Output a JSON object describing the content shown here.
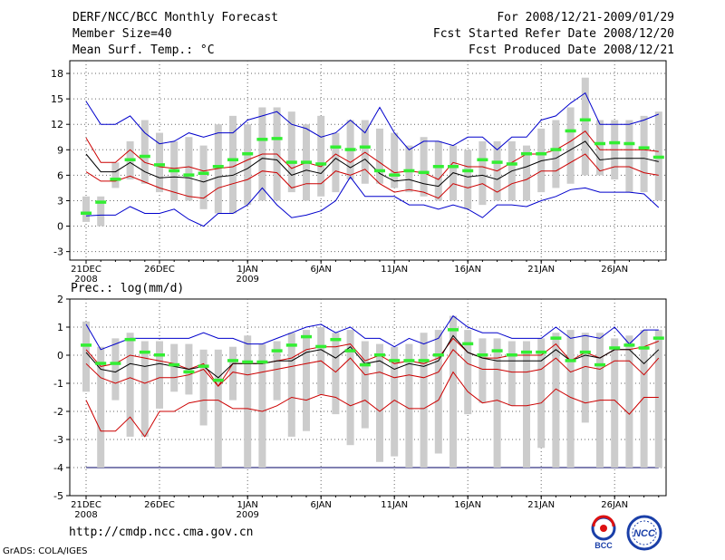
{
  "header": {
    "title": "DERF/NCC/BCC Monthly Forecast",
    "member_size": "Member Size=40",
    "variable": "Mean Surf. Temp.: °C",
    "period": "For 2008/12/21-2009/01/29",
    "started": "Fcst Started Refer Date 2008/12/20",
    "produced": "Fcst Produced Date 2008/12/21"
  },
  "footer": {
    "url": "http://cmdp.ncc.cma.gov.cn",
    "grads": "GrADS: COLA/IGES",
    "logo_bcc": "BCC",
    "logo_ncc": "NCC"
  },
  "colors": {
    "bar": "#cccccc",
    "obs": "#33ee33",
    "mean": "#000000",
    "inner": "#cc0000",
    "outer": "#0000cc",
    "grid": "#666666"
  },
  "x_labels": [
    {
      "day": 1,
      "text": "21DEC",
      "sub": "2008"
    },
    {
      "day": 6,
      "text": "26DEC",
      "sub": ""
    },
    {
      "day": 12,
      "text": "1JAN",
      "sub": "2009"
    },
    {
      "day": 17,
      "text": "6JAN",
      "sub": ""
    },
    {
      "day": 22,
      "text": "11JAN",
      "sub": ""
    },
    {
      "day": 27,
      "text": "16JAN",
      "sub": ""
    },
    {
      "day": 32,
      "text": "21JAN",
      "sub": ""
    },
    {
      "day": 37,
      "text": "26JAN",
      "sub": ""
    }
  ],
  "chart_data": [
    {
      "type": "box-line",
      "title": "Mean Surf. Temp.: °C",
      "x": [
        1,
        2,
        3,
        4,
        5,
        6,
        7,
        8,
        9,
        10,
        11,
        12,
        13,
        14,
        15,
        16,
        17,
        18,
        19,
        20,
        21,
        22,
        23,
        24,
        25,
        26,
        27,
        28,
        29,
        30,
        31,
        32,
        33,
        34,
        35,
        36,
        37,
        38,
        39,
        40
      ],
      "ylim": [
        -4,
        19.5
      ],
      "yticks": [
        -3,
        0,
        3,
        6,
        9,
        12,
        15,
        18
      ],
      "bar_low": [
        0.5,
        0,
        4.5,
        5.5,
        5,
        4,
        3,
        3,
        2,
        1.5,
        1.5,
        2.5,
        3,
        3,
        4,
        3,
        3.5,
        4,
        5.5,
        5,
        5,
        4.5,
        4,
        3.5,
        3,
        3,
        2,
        2.5,
        3,
        3,
        3,
        4,
        4.5,
        5,
        6,
        6,
        5.5,
        4,
        4,
        3
      ],
      "bar_high": [
        3.5,
        3.5,
        7.5,
        10,
        12.5,
        11,
        10,
        10.5,
        9.5,
        12,
        13,
        12,
        14,
        14,
        13.5,
        12,
        13,
        11,
        12.5,
        12.5,
        11.5,
        11,
        9.5,
        10.5,
        10,
        9.5,
        9,
        10,
        10,
        10,
        9.5,
        11.5,
        12.5,
        14,
        17.5,
        12.5,
        12.5,
        12.5,
        13,
        13.5
      ],
      "obs": [
        1.5,
        2.8,
        5.5,
        7.8,
        8.2,
        7.2,
        6.5,
        6.0,
        6.2,
        7.0,
        7.8,
        8.5,
        10.2,
        10.3,
        7.5,
        7.5,
        7.3,
        9.3,
        9.0,
        9.3,
        6.5,
        6.0,
        6.5,
        6.3,
        7.0,
        7.0,
        6.5,
        7.8,
        7.5,
        7.3,
        8.5,
        8.5,
        9.0,
        11.2,
        12.5,
        9.7,
        9.8,
        9.7,
        9.2,
        8.1
      ],
      "series": [
        {
          "name": "max",
          "color": "#0000cc",
          "values": [
            14.7,
            12.0,
            12.0,
            13.0,
            11.0,
            9.7,
            10.0,
            11.0,
            10.5,
            11.0,
            11.0,
            12.5,
            13.0,
            13.5,
            12.0,
            11.5,
            10.5,
            11.0,
            12.5,
            11.0,
            14.0,
            11.0,
            9.0,
            10.0,
            10.0,
            9.5,
            10.5,
            10.5,
            9.0,
            10.5,
            10.5,
            12.5,
            13.0,
            14.5,
            15.7,
            12.0,
            12.0,
            12.0,
            12.5,
            13.2
          ]
        },
        {
          "name": "p_hi",
          "color": "#cc0000",
          "values": [
            10.4,
            7.5,
            7.5,
            9.0,
            7.5,
            7.0,
            6.8,
            7.0,
            6.5,
            6.8,
            7.0,
            7.8,
            8.5,
            8.5,
            6.8,
            7.5,
            7.0,
            8.5,
            7.5,
            8.7,
            7.5,
            6.3,
            6.5,
            6.3,
            5.5,
            7.5,
            7.0,
            7.0,
            6.5,
            7.5,
            8.5,
            8.5,
            9.0,
            10.0,
            11.2,
            9.0,
            9.0,
            9.0,
            9.0,
            8.8
          ]
        },
        {
          "name": "mean",
          "color": "#000000",
          "values": [
            8.5,
            6.4,
            6.4,
            7.5,
            6.4,
            5.7,
            5.8,
            5.7,
            5.2,
            5.8,
            6.0,
            6.8,
            8.0,
            7.8,
            6.0,
            6.6,
            6.2,
            8.0,
            6.9,
            7.9,
            6.2,
            5.3,
            5.5,
            5.0,
            4.7,
            6.3,
            5.8,
            6.0,
            5.5,
            6.5,
            7.0,
            7.7,
            8.0,
            9.0,
            10.0,
            7.8,
            8.0,
            8.0,
            8.0,
            7.6
          ]
        },
        {
          "name": "p_lo",
          "color": "#cc0000",
          "values": [
            6.4,
            5.3,
            5.3,
            5.9,
            5.2,
            4.5,
            4.0,
            3.5,
            3.3,
            4.5,
            5.0,
            5.5,
            6.5,
            6.3,
            4.5,
            5.0,
            5.0,
            6.5,
            6.0,
            6.7,
            5.0,
            4.0,
            4.3,
            4.0,
            3.3,
            5.0,
            4.5,
            5.0,
            4.0,
            5.0,
            5.5,
            6.5,
            6.5,
            7.5,
            8.5,
            6.5,
            7.0,
            7.0,
            6.3,
            6.0
          ]
        },
        {
          "name": "min",
          "color": "#0000cc",
          "values": [
            1.2,
            1.3,
            1.3,
            2.3,
            1.5,
            1.5,
            2.0,
            0.8,
            0.0,
            1.5,
            1.5,
            2.5,
            4.5,
            2.5,
            1.0,
            1.3,
            1.8,
            3.0,
            5.8,
            3.5,
            3.5,
            3.5,
            2.5,
            2.5,
            2.0,
            2.5,
            2.0,
            1.0,
            2.5,
            2.5,
            2.3,
            3.0,
            3.5,
            4.3,
            4.5,
            4.0,
            4.0,
            4.0,
            3.8,
            2.2
          ]
        }
      ]
    },
    {
      "type": "box-line",
      "title": "Prec.: log(mm/d)",
      "x": [
        1,
        2,
        3,
        4,
        5,
        6,
        7,
        8,
        9,
        10,
        11,
        12,
        13,
        14,
        15,
        16,
        17,
        18,
        19,
        20,
        21,
        22,
        23,
        24,
        25,
        26,
        27,
        28,
        29,
        30,
        31,
        32,
        33,
        34,
        35,
        36,
        37,
        38,
        39,
        40
      ],
      "ylim": [
        -5,
        2
      ],
      "yticks": [
        -5,
        -4,
        -3,
        -2,
        -1,
        0,
        1,
        2
      ],
      "bar_low": [
        -1.3,
        -4.0,
        -1.6,
        -2.9,
        -2.9,
        -1.9,
        -1.3,
        -1.4,
        -2.5,
        -4.0,
        -1.6,
        -4.0,
        -4.0,
        -1.6,
        -2.9,
        -2.7,
        -1.4,
        -2.1,
        -3.2,
        -2.6,
        -3.8,
        -3.6,
        -4.0,
        -4.0,
        -3.5,
        -4.0,
        -2.1,
        -1.7,
        -4.0,
        -1.8,
        -4.0,
        -3.3,
        -4.0,
        -4.0,
        -2.4,
        -4.0,
        -4.0,
        -4.0,
        -4.0,
        -4.0
      ],
      "bar_high": [
        1.2,
        0.3,
        0.6,
        0.8,
        0.5,
        0.5,
        0.4,
        0.4,
        0.2,
        0.2,
        0.3,
        0.7,
        0.4,
        0.5,
        0.8,
        0.9,
        1.0,
        0.8,
        0.9,
        0.5,
        0.4,
        0.3,
        0.4,
        0.8,
        0.9,
        1.4,
        0.9,
        0.6,
        0.6,
        0.5,
        0.5,
        0.6,
        0.8,
        0.9,
        0.8,
        0.8,
        0.6,
        0.7,
        0.9,
        0.9
      ],
      "obs": [
        0.35,
        -0.3,
        -0.3,
        0.55,
        0.1,
        0.0,
        -0.35,
        -0.6,
        -0.4,
        -0.9,
        -0.2,
        -0.25,
        -0.25,
        0.15,
        0.35,
        0.65,
        0.3,
        0.55,
        0.15,
        -0.35,
        0.0,
        -0.2,
        -0.2,
        -0.2,
        0.0,
        0.9,
        0.4,
        0.0,
        0.15,
        0.0,
        0.1,
        0.1,
        0.6,
        -0.2,
        0.1,
        -0.35,
        0.25,
        0.35,
        0.25,
        0.6
      ],
      "series": [
        {
          "name": "max",
          "color": "#0000cc",
          "values": [
            1.1,
            0.2,
            0.4,
            0.6,
            0.6,
            0.6,
            0.6,
            0.6,
            0.8,
            0.6,
            0.6,
            0.4,
            0.4,
            0.6,
            0.8,
            1.0,
            1.1,
            0.8,
            1.0,
            0.6,
            0.6,
            0.3,
            0.6,
            0.4,
            0.6,
            1.4,
            1.0,
            0.8,
            0.8,
            0.6,
            0.6,
            0.6,
            1.0,
            0.6,
            0.7,
            0.6,
            1.0,
            0.4,
            0.9,
            0.9
          ]
        },
        {
          "name": "p_hi",
          "color": "#cc0000",
          "values": [
            0.2,
            -0.4,
            -0.3,
            0.0,
            -0.1,
            -0.2,
            -0.3,
            -0.5,
            -0.3,
            -1.1,
            -0.3,
            -0.3,
            -0.3,
            -0.2,
            -0.1,
            0.2,
            0.3,
            0.3,
            0.4,
            -0.2,
            0.0,
            -0.3,
            -0.2,
            -0.3,
            -0.1,
            0.6,
            0.1,
            -0.1,
            -0.1,
            0.0,
            0.0,
            0.0,
            0.4,
            -0.2,
            0.1,
            -0.1,
            0.2,
            0.2,
            0.3,
            0.5
          ]
        },
        {
          "name": "mean",
          "color": "#000000",
          "values": [
            0.1,
            -0.5,
            -0.6,
            -0.3,
            -0.4,
            -0.3,
            -0.4,
            -0.5,
            -0.4,
            -0.8,
            -0.3,
            -0.3,
            -0.3,
            -0.2,
            -0.2,
            0.1,
            0.2,
            -0.1,
            0.3,
            -0.3,
            -0.2,
            -0.5,
            -0.3,
            -0.4,
            -0.2,
            0.7,
            0.1,
            -0.1,
            -0.2,
            -0.2,
            -0.2,
            -0.2,
            0.2,
            -0.2,
            0.0,
            -0.1,
            0.2,
            0.2,
            -0.3,
            0.2
          ]
        },
        {
          "name": "p_lo",
          "color": "#cc0000",
          "values": [
            -0.3,
            -0.8,
            -1.0,
            -0.8,
            -1.0,
            -0.8,
            -0.8,
            -0.7,
            -0.5,
            -1.1,
            -0.6,
            -0.7,
            -0.6,
            -0.5,
            -0.4,
            -0.3,
            -0.2,
            -0.6,
            -0.1,
            -0.7,
            -0.6,
            -0.8,
            -0.7,
            -0.8,
            -0.6,
            0.2,
            -0.3,
            -0.5,
            -0.5,
            -0.6,
            -0.6,
            -0.5,
            -0.1,
            -0.6,
            -0.4,
            -0.5,
            -0.2,
            -0.2,
            -0.7,
            -0.1
          ]
        },
        {
          "name": "min",
          "color": "#cc0000",
          "values": [
            -1.6,
            -2.7,
            -2.7,
            -2.2,
            -2.9,
            -2.0,
            -2.0,
            -1.7,
            -1.6,
            -1.6,
            -1.9,
            -1.9,
            -2.0,
            -1.8,
            -1.5,
            -1.6,
            -1.4,
            -1.5,
            -1.8,
            -1.6,
            -2.0,
            -1.6,
            -1.9,
            -1.9,
            -1.6,
            -0.6,
            -1.3,
            -1.7,
            -1.6,
            -1.8,
            -1.8,
            -1.7,
            -1.2,
            -1.5,
            -1.7,
            -1.6,
            -1.6,
            -2.1,
            -1.5,
            -1.5
          ]
        }
      ],
      "floor_line": {
        "value": -4,
        "color": "#000066"
      }
    }
  ]
}
